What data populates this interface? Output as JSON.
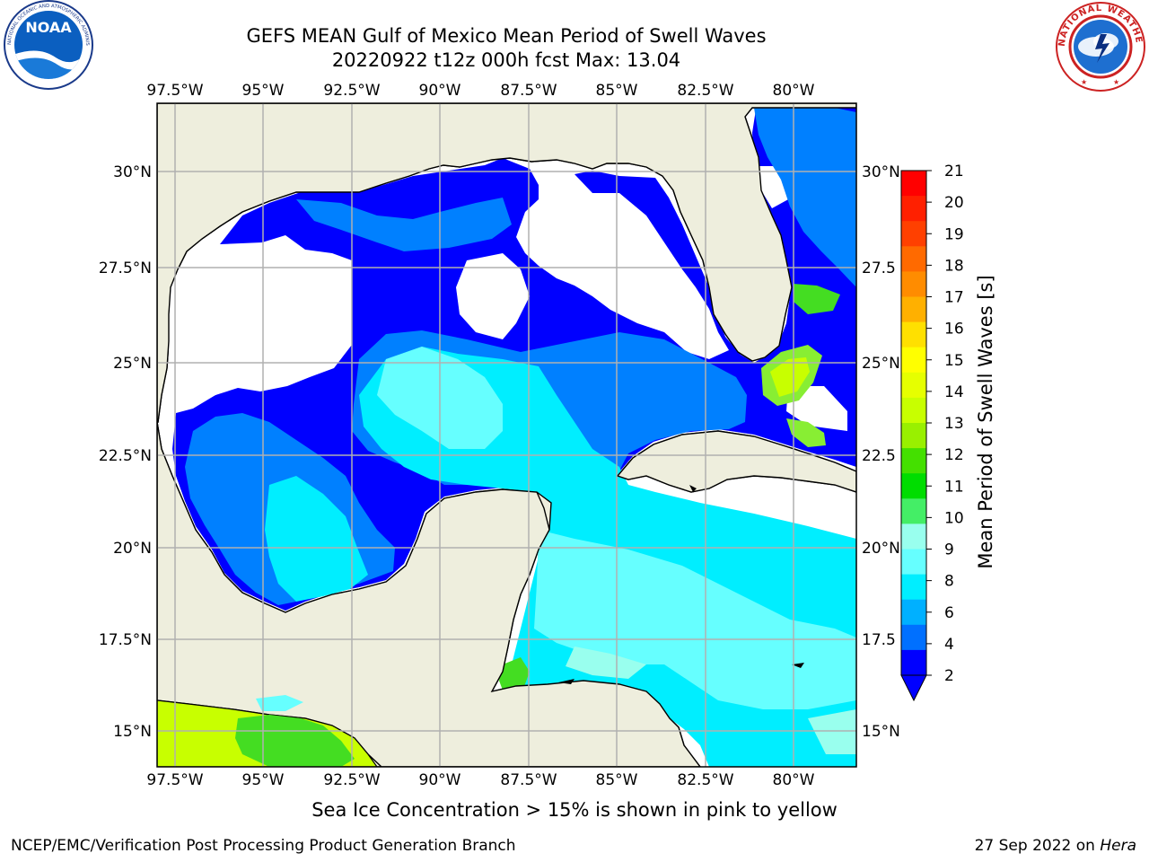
{
  "header": {
    "title_line1": "GEFS MEAN Gulf of Mexico Mean Period of Swell Waves",
    "title_line2": "20220922 t12z 000h fcst   Max: 13.04"
  },
  "logos": {
    "left": "NOAA",
    "left_ring_text": "NATIONAL OCEANIC AND ATMOSPHERIC ADMINISTRATION · U.S. DEPARTMENT OF COMMERCE",
    "right_ring_text": "NATIONAL WEATHER SERVICE"
  },
  "map": {
    "lon_ticks": [
      "97.5°W",
      "95°W",
      "92.5°W",
      "90°W",
      "87.5°W",
      "85°W",
      "82.5°W",
      "80°W"
    ],
    "lat_ticks_left": [
      "30°N",
      "27.5°N",
      "25°N",
      "22.5°N",
      "20°N",
      "17.5°N",
      "15°N"
    ],
    "lat_ticks_right": [
      "30°N",
      "27.5",
      "25°N",
      "22.5",
      "20°N",
      "17.5",
      "15°N"
    ],
    "land_color": "#eeeedd",
    "grid_color": "#b0b0b0"
  },
  "colorbar": {
    "label": "Mean Period of Swell Waves [s]",
    "ticks": [
      "21",
      "20",
      "19",
      "18",
      "17",
      "16",
      "15",
      "14",
      "13",
      "12",
      "11",
      "10",
      "9",
      "8",
      "6",
      "4",
      "2"
    ],
    "colors_top_to_bottom": [
      "#ff0000",
      "#ff2000",
      "#ff4000",
      "#ff6a00",
      "#ff8c00",
      "#ffb000",
      "#ffe000",
      "#ffff00",
      "#e6ff00",
      "#c8ff00",
      "#99f000",
      "#44e000",
      "#00dd00",
      "#44ee66",
      "#99ffee",
      "#66ffff",
      "#00eeff",
      "#00b0ff",
      "#0070ff",
      "#0000ff"
    ]
  },
  "footer": {
    "note": "Sea Ice Concentration > 15% is shown in pink to yellow",
    "credit": "NCEP/EMC/Verification Post Processing Product Generation Branch",
    "date": "27 Sep 2022 on ",
    "host": "Hera"
  }
}
